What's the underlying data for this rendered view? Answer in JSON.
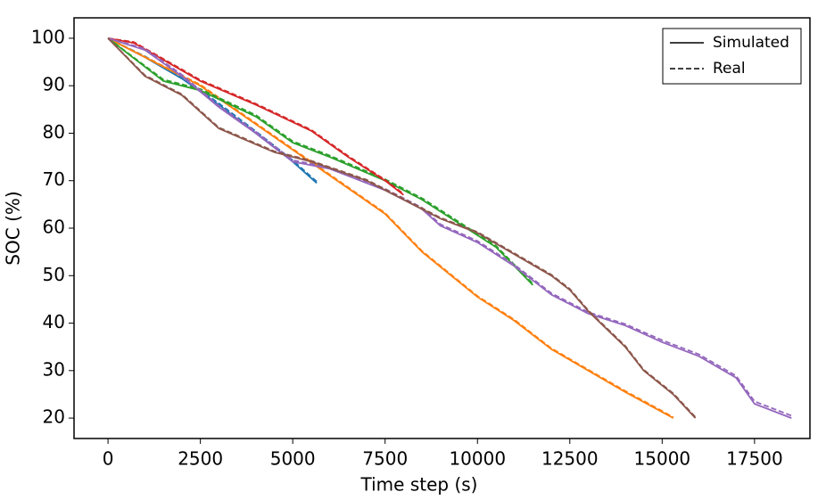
{
  "chart_data": {
    "type": "line",
    "xlabel": "Time step (s)",
    "ylabel": "SOC (%)",
    "xlim": [
      -920,
      19000
    ],
    "ylim": [
      15.7,
      104.3
    ],
    "xticks": [
      0,
      2500,
      5000,
      7500,
      10000,
      12500,
      15000,
      17500
    ],
    "yticks": [
      20,
      30,
      40,
      50,
      60,
      70,
      80,
      90,
      100
    ],
    "grid": false,
    "legend_position": "upper right",
    "legend": [
      {
        "label": "Simulated",
        "dash": "solid",
        "color": "#000000"
      },
      {
        "label": "Real",
        "dash": "dashed",
        "color": "#000000"
      }
    ],
    "series": [
      {
        "color": "#1f77b4",
        "dash": "solid",
        "x": [
          0,
          1000,
          2000,
          3000,
          4000,
          5000,
          5650
        ],
        "values": [
          100,
          96,
          91.5,
          86,
          80,
          74,
          69.5
        ]
      },
      {
        "color": "#1f77b4",
        "dash": "dashed",
        "x": [
          0,
          1000,
          2000,
          3000,
          4000,
          5000,
          5650
        ],
        "values": [
          100,
          96.2,
          91.8,
          86.3,
          80.4,
          74.3,
          69.8
        ]
      },
      {
        "color": "#ff7f0e",
        "dash": "solid",
        "x": [
          0,
          2500,
          5000,
          7500,
          8500,
          10000,
          11000,
          12000,
          13000,
          14000,
          15300
        ],
        "values": [
          100,
          90,
          76.5,
          63,
          55,
          45.5,
          40.5,
          34.5,
          30,
          25.5,
          20
        ]
      },
      {
        "color": "#ff7f0e",
        "dash": "dashed",
        "x": [
          0,
          2500,
          5000,
          7500,
          8500,
          10000,
          11000,
          12000,
          13000,
          14000,
          15300
        ],
        "values": [
          100,
          90.2,
          76.7,
          63.2,
          55.2,
          45.7,
          40.7,
          34.7,
          30.2,
          25.7,
          20.2
        ]
      },
      {
        "color": "#2ca02c",
        "dash": "solid",
        "x": [
          0,
          1500,
          2500,
          4000,
          5000,
          6000,
          7500,
          8500,
          9500,
          10500,
          11500
        ],
        "values": [
          100,
          91,
          89,
          83.5,
          78,
          75,
          70,
          66,
          61,
          56,
          48
        ]
      },
      {
        "color": "#2ca02c",
        "dash": "dashed",
        "x": [
          0,
          1500,
          2500,
          4000,
          5000,
          6000,
          7500,
          8500,
          9500,
          10500,
          11500
        ],
        "values": [
          100,
          91.3,
          89.3,
          83.8,
          78.3,
          75.3,
          70.3,
          66.3,
          61.3,
          56.3,
          48.3
        ]
      },
      {
        "color": "#d62728",
        "dash": "solid",
        "x": [
          0,
          700,
          2500,
          4000,
          5500,
          6500,
          7500,
          8000
        ],
        "values": [
          100,
          99,
          91,
          86,
          80.5,
          75,
          70,
          67
        ]
      },
      {
        "color": "#d62728",
        "dash": "dashed",
        "x": [
          0,
          700,
          2500,
          4000,
          5500,
          6500,
          7500,
          8000
        ],
        "values": [
          100,
          99.2,
          91.2,
          86.2,
          80.7,
          75.2,
          70.2,
          67.2
        ]
      },
      {
        "color": "#9467bd",
        "dash": "solid",
        "x": [
          0,
          1000,
          2000,
          3000,
          4000,
          5000,
          6000,
          7500,
          8500,
          9000,
          10000,
          11000,
          12000,
          13000,
          14000,
          15000,
          16000,
          17000,
          17500,
          18500
        ],
        "values": [
          100,
          97.5,
          92,
          85.5,
          80,
          74,
          72.5,
          68,
          64,
          60.5,
          57,
          52,
          46,
          42,
          39.5,
          36,
          33,
          28.5,
          23,
          20
        ]
      },
      {
        "color": "#9467bd",
        "dash": "dashed",
        "x": [
          0,
          1000,
          2000,
          3000,
          4000,
          5000,
          6000,
          7500,
          8500,
          9000,
          10000,
          11000,
          12000,
          13000,
          14000,
          15000,
          16000,
          17000,
          17500,
          18500
        ],
        "values": [
          100,
          97.8,
          92.3,
          85.8,
          80.3,
          74.3,
          72.8,
          68.3,
          64.3,
          60.8,
          57.3,
          52.3,
          46.3,
          42.3,
          39.8,
          36.4,
          33.4,
          28.9,
          23.5,
          20.5
        ]
      },
      {
        "color": "#8c564b",
        "dash": "solid",
        "x": [
          0,
          1000,
          2000,
          3000,
          4500,
          5500,
          7000,
          8000,
          9000,
          10000,
          11000,
          12000,
          12500,
          13000,
          14000,
          14500,
          15300,
          15900
        ],
        "values": [
          100,
          92,
          88,
          81,
          76,
          74,
          70,
          66,
          62,
          59,
          54.5,
          50,
          47,
          42.5,
          35,
          30,
          25,
          20
        ]
      },
      {
        "color": "#8c564b",
        "dash": "dashed",
        "x": [
          0,
          1000,
          2000,
          3000,
          4500,
          5500,
          7000,
          8000,
          9000,
          10000,
          11000,
          12000,
          12500,
          13000,
          14000,
          14500,
          15300,
          15900
        ],
        "values": [
          100,
          92.2,
          88.2,
          81.2,
          76.2,
          74.2,
          70.2,
          66.2,
          62.2,
          59.2,
          54.7,
          50.2,
          47.2,
          42.7,
          35.2,
          30.2,
          25.2,
          20.2
        ]
      }
    ]
  }
}
